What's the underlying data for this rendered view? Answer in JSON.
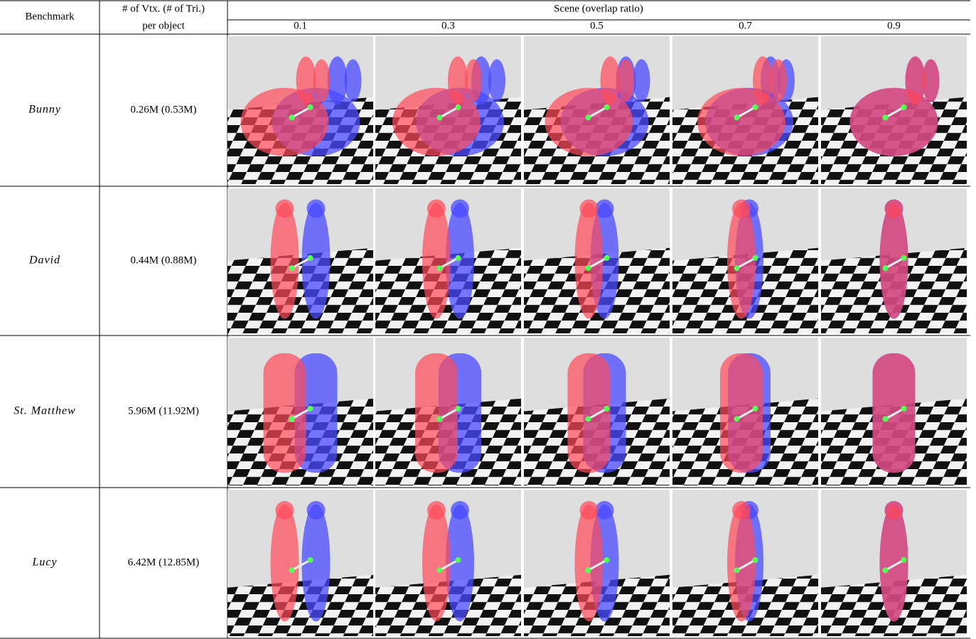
{
  "table": {
    "header": {
      "benchmark": "Benchmark",
      "vertices": [
        "# of Vtx. (# of Tri.)",
        "per object"
      ],
      "scene": "Scene (overlap ratio)",
      "ratios": [
        "0.1",
        "0.3",
        "0.5",
        "0.7",
        "0.9"
      ]
    },
    "rows": [
      {
        "benchmark": "Bunny",
        "size": "0.26M (0.53M)"
      },
      {
        "benchmark": "David",
        "size": "0.44M (0.88M)"
      },
      {
        "benchmark": "St. Matthew",
        "size": "5.96M (11.92M)"
      },
      {
        "benchmark": "Lucy",
        "size": "6.42M (12.85M)"
      }
    ]
  }
}
